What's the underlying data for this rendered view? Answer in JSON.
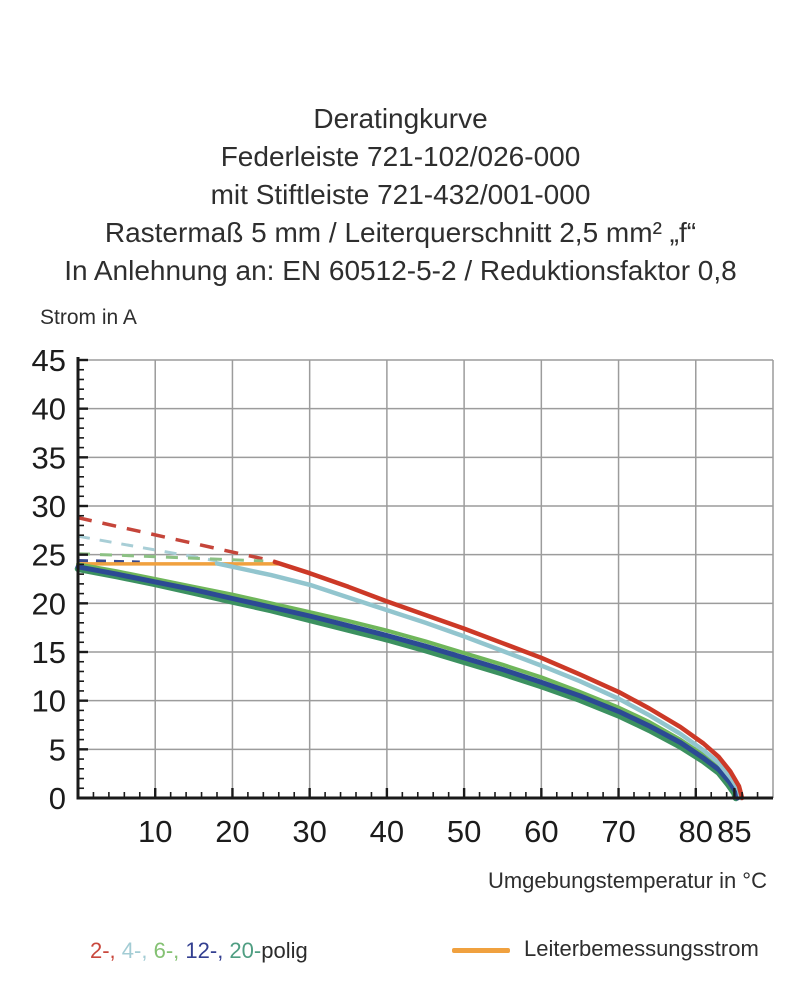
{
  "page": {
    "background": "#ffffff"
  },
  "header": {
    "lines": [
      "Deratingkurve",
      "Federleiste 721-102/026-000",
      "mit Stiftleiste 721-432/001-000",
      "Rastermaß 5 mm / Leiterquerschnitt 2,5 mm² „f“",
      "In Anlehnung an: EN 60512-5-2 / Reduktionsfaktor 0,8"
    ]
  },
  "chart_data": {
    "type": "line",
    "title": "Deratingkurve",
    "ylabel": "Strom in A",
    "xlabel": "Umgebungstemperatur in °C",
    "xlim": [
      0,
      90
    ],
    "ylim": [
      0,
      45
    ],
    "x_major_ticks": [
      10,
      20,
      30,
      40,
      50,
      60,
      70,
      80,
      85
    ],
    "x_gridlines": [
      10,
      20,
      30,
      40,
      50,
      60,
      70,
      80
    ],
    "y_major_ticks": [
      0,
      5,
      10,
      15,
      20,
      25,
      30,
      35,
      40,
      45
    ],
    "x_minor_step": 2,
    "y_minor_step": 1,
    "grid": true,
    "grid_color": "#9c9c9c",
    "axis_color": "#1a1a1a",
    "label_color": "#1c1c1c",
    "rated_current": {
      "label": "Leiterbemessungsstrom",
      "color": "#f0a13f",
      "value": 24.05,
      "x_range": [
        0,
        26
      ],
      "width": 3.5
    },
    "dashed_extensions": [
      {
        "name": "2-polig-derating-uncapped",
        "color": "#c5453a",
        "width": 3.5,
        "dash": "14 11",
        "points": [
          [
            0,
            28.8
          ],
          [
            25.5,
            24.3
          ]
        ]
      },
      {
        "name": "4-polig-derating-uncapped",
        "color": "#a8ced6",
        "width": 3,
        "dash": "12 10",
        "points": [
          [
            0,
            26.9
          ],
          [
            18,
            24.35
          ]
        ]
      },
      {
        "name": "6-polig-derating-uncapped",
        "color": "#8cc184",
        "width": 3,
        "dash": "12 10",
        "points": [
          [
            0,
            25.1
          ],
          [
            24,
            24.35
          ]
        ]
      },
      {
        "name": "12-polig-derating-uncapped",
        "color": "#3a4b8e",
        "width": 3,
        "dash": "10 8",
        "points": [
          [
            0,
            24.4
          ],
          [
            8,
            24.25
          ]
        ]
      }
    ],
    "series": [
      {
        "name": "6-polig",
        "poles": 6,
        "color": "#6fb65a",
        "width": 4,
        "points": [
          [
            0,
            24.0
          ],
          [
            5,
            23.3
          ],
          [
            10,
            22.5
          ],
          [
            15,
            21.7
          ],
          [
            20,
            20.9
          ],
          [
            25,
            20.0
          ],
          [
            30,
            19.1
          ],
          [
            35,
            18.2
          ],
          [
            40,
            17.2
          ],
          [
            45,
            16.1
          ],
          [
            50,
            14.9
          ],
          [
            55,
            13.7
          ],
          [
            60,
            12.4
          ],
          [
            65,
            10.9
          ],
          [
            70,
            9.3
          ],
          [
            74,
            7.8
          ],
          [
            78,
            6.0
          ],
          [
            81,
            4.4
          ],
          [
            83,
            3.2
          ],
          [
            84.5,
            1.8
          ],
          [
            85.4,
            0.7
          ],
          [
            85.6,
            0
          ]
        ]
      },
      {
        "name": "20-polig",
        "poles": 20,
        "color": "#3c9160",
        "width": 6.5,
        "points": [
          [
            0,
            23.55
          ],
          [
            5,
            22.8
          ],
          [
            10,
            22.0
          ],
          [
            15,
            21.1
          ],
          [
            20,
            20.2
          ],
          [
            25,
            19.3
          ],
          [
            30,
            18.3
          ],
          [
            35,
            17.3
          ],
          [
            40,
            16.3
          ],
          [
            45,
            15.2
          ],
          [
            50,
            14.0
          ],
          [
            55,
            12.8
          ],
          [
            60,
            11.5
          ],
          [
            65,
            10.1
          ],
          [
            70,
            8.5
          ],
          [
            74,
            7.0
          ],
          [
            78,
            5.3
          ],
          [
            81,
            3.8
          ],
          [
            83,
            2.6
          ],
          [
            84.2,
            1.4
          ],
          [
            85,
            0.5
          ],
          [
            85.2,
            0
          ]
        ]
      },
      {
        "name": "12-polig",
        "poles": 12,
        "color": "#2c4a94",
        "width": 5,
        "points": [
          [
            0,
            23.75
          ],
          [
            5,
            23.0
          ],
          [
            10,
            22.2
          ],
          [
            15,
            21.4
          ],
          [
            20,
            20.5
          ],
          [
            25,
            19.6
          ],
          [
            30,
            18.7
          ],
          [
            35,
            17.7
          ],
          [
            40,
            16.7
          ],
          [
            45,
            15.6
          ],
          [
            50,
            14.4
          ],
          [
            55,
            13.2
          ],
          [
            60,
            11.9
          ],
          [
            65,
            10.5
          ],
          [
            70,
            8.9
          ],
          [
            74,
            7.4
          ],
          [
            78,
            5.7
          ],
          [
            81,
            4.1
          ],
          [
            83,
            2.9
          ],
          [
            84.4,
            1.6
          ],
          [
            85.2,
            0.6
          ],
          [
            85.4,
            0
          ]
        ]
      },
      {
        "name": "4-polig",
        "poles": 4,
        "color": "#92c5ce",
        "width": 4.5,
        "points": [
          [
            18,
            24.1
          ],
          [
            25,
            22.9
          ],
          [
            30,
            21.9
          ],
          [
            35,
            20.6
          ],
          [
            40,
            19.3
          ],
          [
            45,
            18.0
          ],
          [
            50,
            16.6
          ],
          [
            55,
            15.1
          ],
          [
            60,
            13.6
          ],
          [
            65,
            12.0
          ],
          [
            70,
            10.2
          ],
          [
            74,
            8.5
          ],
          [
            78,
            6.6
          ],
          [
            81,
            4.9
          ],
          [
            83,
            3.6
          ],
          [
            84.6,
            2.0
          ],
          [
            85.6,
            0.8
          ],
          [
            85.8,
            0
          ]
        ]
      },
      {
        "name": "2-polig",
        "poles": 2,
        "color": "#cc3927",
        "width": 4.5,
        "points": [
          [
            25.5,
            24.25
          ],
          [
            30,
            23.1
          ],
          [
            35,
            21.7
          ],
          [
            40,
            20.2
          ],
          [
            45,
            18.8
          ],
          [
            50,
            17.4
          ],
          [
            55,
            15.9
          ],
          [
            60,
            14.4
          ],
          [
            65,
            12.7
          ],
          [
            70,
            10.9
          ],
          [
            74,
            9.2
          ],
          [
            78,
            7.3
          ],
          [
            81,
            5.6
          ],
          [
            83,
            4.2
          ],
          [
            84.5,
            2.7
          ],
          [
            85.6,
            1.2
          ],
          [
            86,
            0
          ]
        ]
      }
    ]
  },
  "legend_poles": {
    "pieces": [
      {
        "text": "2-, ",
        "color": "#c9473c"
      },
      {
        "text": "4-, ",
        "color": "#a3ccd4"
      },
      {
        "text": "6-, ",
        "color": "#84c173"
      },
      {
        "text": "12-, ",
        "color": "#333f90"
      },
      {
        "text": "20-",
        "color": "#4f9e82"
      },
      {
        "text": "polig",
        "color": "#2b2b2b"
      }
    ]
  },
  "legend_rated": {
    "label": "Leiterbemessungsstrom",
    "color": "#f0a13f"
  }
}
